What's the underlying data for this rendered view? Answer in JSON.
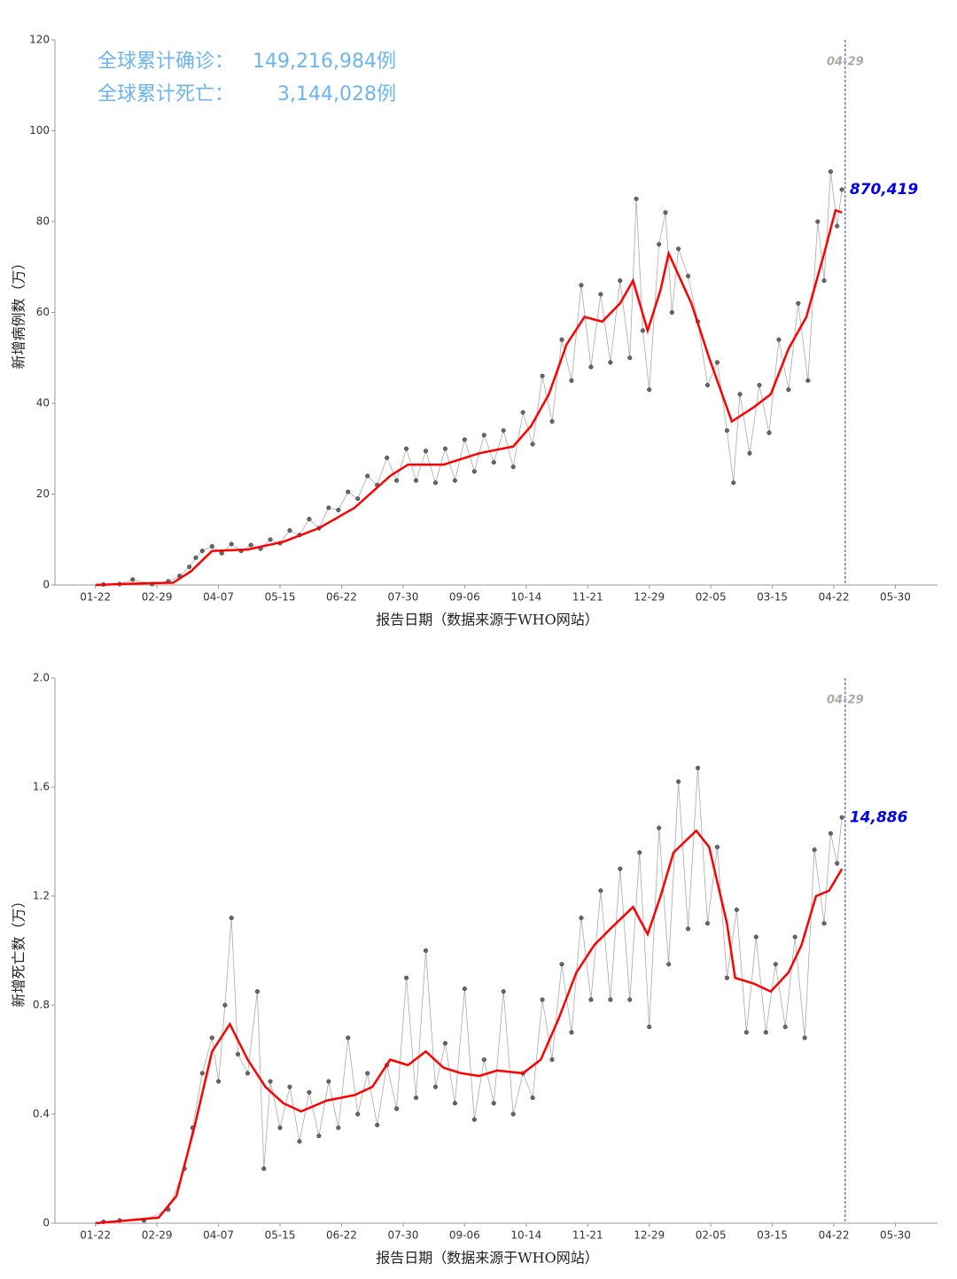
{
  "chart_data": [
    {
      "type": "line",
      "headline": [
        {
          "label": "全球累计确诊：",
          "value": "149,216,984例"
        },
        {
          "label": "全球累计死亡：",
          "value": "3,144,028例"
        }
      ],
      "ylabel": "新增病例数（万）",
      "xlabel": "报告日期（数据来源于WHO网站）",
      "xlim": [
        -25,
        520
      ],
      "ylim": [
        0,
        120
      ],
      "yticks": [
        0,
        20,
        40,
        60,
        80,
        100,
        120
      ],
      "xticks": [
        {
          "value": 0,
          "label": "01-22"
        },
        {
          "value": 38,
          "label": "02-29"
        },
        {
          "value": 76,
          "label": "04-07"
        },
        {
          "value": 114,
          "label": "05-15"
        },
        {
          "value": 152,
          "label": "06-22"
        },
        {
          "value": 190,
          "label": "07-30"
        },
        {
          "value": 228,
          "label": "09-06"
        },
        {
          "value": 266,
          "label": "10-14"
        },
        {
          "value": 304,
          "label": "11-21"
        },
        {
          "value": 342,
          "label": "12-29"
        },
        {
          "value": 380,
          "label": "02-05"
        },
        {
          "value": 418,
          "label": "03-15"
        },
        {
          "value": 456,
          "label": "04-22"
        },
        {
          "value": 494,
          "label": "05-30"
        }
      ],
      "vline_x": 463,
      "vline_label": "04-29",
      "last_value_label": "870,419",
      "series": [
        {
          "mode": "markers",
          "color": "#666666",
          "x": [
            5,
            15,
            23,
            35,
            45,
            52,
            58,
            62,
            66,
            72,
            78,
            84,
            90,
            96,
            102,
            108,
            114,
            120,
            126,
            132,
            138,
            144,
            150,
            156,
            162,
            168,
            174,
            180,
            186,
            192,
            198,
            204,
            210,
            216,
            222,
            228,
            234,
            240,
            246,
            252,
            258,
            264,
            270,
            276,
            282,
            288,
            294,
            300,
            306,
            312,
            318,
            324,
            330,
            334,
            338,
            342,
            348,
            352,
            356,
            360,
            366,
            372,
            378,
            384,
            390,
            394,
            398,
            404,
            410,
            416,
            422,
            428,
            434,
            440,
            446,
            450,
            454,
            458,
            461
          ],
          "values": [
            0.1,
            0.2,
            1.2,
            0.2,
            0.8,
            2,
            4,
            6,
            7.5,
            8.5,
            7,
            9,
            7.5,
            8.8,
            8,
            10,
            9.2,
            12,
            11,
            14.5,
            12.5,
            17,
            16.5,
            20.5,
            19,
            24,
            22,
            28,
            23,
            30,
            23,
            29.5,
            22.5,
            30,
            23,
            32,
            25,
            33,
            27,
            34,
            26,
            38,
            31,
            46,
            36,
            54,
            45,
            66,
            48,
            64,
            49,
            67,
            50,
            85,
            56,
            43,
            75,
            82,
            60,
            74,
            68,
            58,
            44,
            49,
            34,
            22.5,
            42,
            29,
            44,
            33.5,
            54,
            43,
            62,
            45,
            80,
            67,
            91,
            79,
            87.0419
          ]
        },
        {
          "mode": "line",
          "color": "#ff0000",
          "x": [
            0,
            23,
            48,
            59,
            72,
            94,
            116,
            138,
            160,
            182,
            193,
            215,
            237,
            258,
            269,
            280,
            291,
            302,
            313,
            324,
            332,
            341,
            349,
            354,
            368,
            379,
            393,
            406,
            417,
            428,
            439,
            450,
            457,
            461
          ],
          "values": [
            0,
            0.3,
            0.5,
            3,
            7.5,
            7.8,
            9.5,
            12.5,
            17,
            24,
            26.5,
            26.5,
            29,
            30.5,
            35,
            42,
            53,
            59,
            58,
            62,
            67,
            56,
            65,
            73,
            62,
            50,
            36,
            39,
            42,
            52,
            59,
            73,
            82.5,
            82
          ]
        }
      ]
    },
    {
      "type": "line",
      "ylabel": "新增死亡数（万）",
      "xlabel": "报告日期（数据来源于WHO网站）",
      "xlim": [
        -25,
        520
      ],
      "ylim": [
        0,
        2
      ],
      "yticks": [
        0,
        0.4,
        0.8,
        1.2,
        1.6,
        {
          "value": 2,
          "label": "2.0"
        }
      ],
      "xticks": [
        {
          "value": 0,
          "label": "01-22"
        },
        {
          "value": 38,
          "label": "02-29"
        },
        {
          "value": 76,
          "label": "04-07"
        },
        {
          "value": 114,
          "label": "05-15"
        },
        {
          "value": 152,
          "label": "06-22"
        },
        {
          "value": 190,
          "label": "07-30"
        },
        {
          "value": 228,
          "label": "09-06"
        },
        {
          "value": 266,
          "label": "10-14"
        },
        {
          "value": 304,
          "label": "11-21"
        },
        {
          "value": 342,
          "label": "12-29"
        },
        {
          "value": 380,
          "label": "02-05"
        },
        {
          "value": 418,
          "label": "03-15"
        },
        {
          "value": 456,
          "label": "04-22"
        },
        {
          "value": 494,
          "label": "05-30"
        }
      ],
      "vline_x": 463,
      "vline_label": "04-29",
      "last_value_label": "14,886",
      "series": [
        {
          "mode": "markers",
          "color": "#666666",
          "x": [
            5,
            15,
            30,
            45,
            55,
            60,
            66,
            72,
            76,
            80,
            84,
            88,
            94,
            100,
            104,
            108,
            114,
            120,
            126,
            132,
            138,
            144,
            150,
            156,
            162,
            168,
            174,
            180,
            186,
            192,
            198,
            204,
            210,
            216,
            222,
            228,
            234,
            240,
            246,
            252,
            258,
            264,
            270,
            276,
            282,
            288,
            294,
            300,
            306,
            312,
            318,
            324,
            330,
            336,
            342,
            348,
            354,
            360,
            366,
            372,
            378,
            384,
            390,
            396,
            402,
            408,
            414,
            420,
            426,
            432,
            438,
            444,
            450,
            454,
            458,
            461
          ],
          "values": [
            0.005,
            0.01,
            0.01,
            0.05,
            0.2,
            0.35,
            0.55,
            0.68,
            0.52,
            0.8,
            1.12,
            0.62,
            0.55,
            0.85,
            0.2,
            0.52,
            0.35,
            0.5,
            0.3,
            0.48,
            0.32,
            0.52,
            0.35,
            0.68,
            0.4,
            0.55,
            0.36,
            0.58,
            0.42,
            0.9,
            0.46,
            1.0,
            0.5,
            0.66,
            0.44,
            0.86,
            0.38,
            0.6,
            0.44,
            0.85,
            0.4,
            0.55,
            0.46,
            0.82,
            0.6,
            0.95,
            0.7,
            1.12,
            0.82,
            1.22,
            0.82,
            1.3,
            0.82,
            1.36,
            0.72,
            1.45,
            0.95,
            1.62,
            1.08,
            1.67,
            1.1,
            1.38,
            0.9,
            1.15,
            0.7,
            1.05,
            0.7,
            0.95,
            0.72,
            1.05,
            0.68,
            1.37,
            1.1,
            1.43,
            1.32,
            1.4886
          ]
        },
        {
          "mode": "line",
          "color": "#ff0000",
          "x": [
            0,
            39,
            50,
            61,
            72,
            83,
            94,
            105,
            116,
            127,
            143,
            160,
            171,
            182,
            193,
            204,
            215,
            226,
            237,
            248,
            264,
            275,
            286,
            297,
            308,
            318,
            332,
            341,
            349,
            357,
            371,
            379,
            390,
            395,
            406,
            417,
            428,
            436,
            445,
            453,
            461
          ],
          "values": [
            0,
            0.02,
            0.1,
            0.35,
            0.63,
            0.73,
            0.6,
            0.5,
            0.44,
            0.41,
            0.45,
            0.47,
            0.5,
            0.6,
            0.58,
            0.63,
            0.57,
            0.55,
            0.54,
            0.56,
            0.55,
            0.6,
            0.75,
            0.92,
            1.02,
            1.08,
            1.16,
            1.06,
            1.2,
            1.36,
            1.44,
            1.38,
            1.1,
            0.9,
            0.88,
            0.85,
            0.92,
            1.02,
            1.2,
            1.22,
            1.3
          ]
        }
      ]
    }
  ]
}
